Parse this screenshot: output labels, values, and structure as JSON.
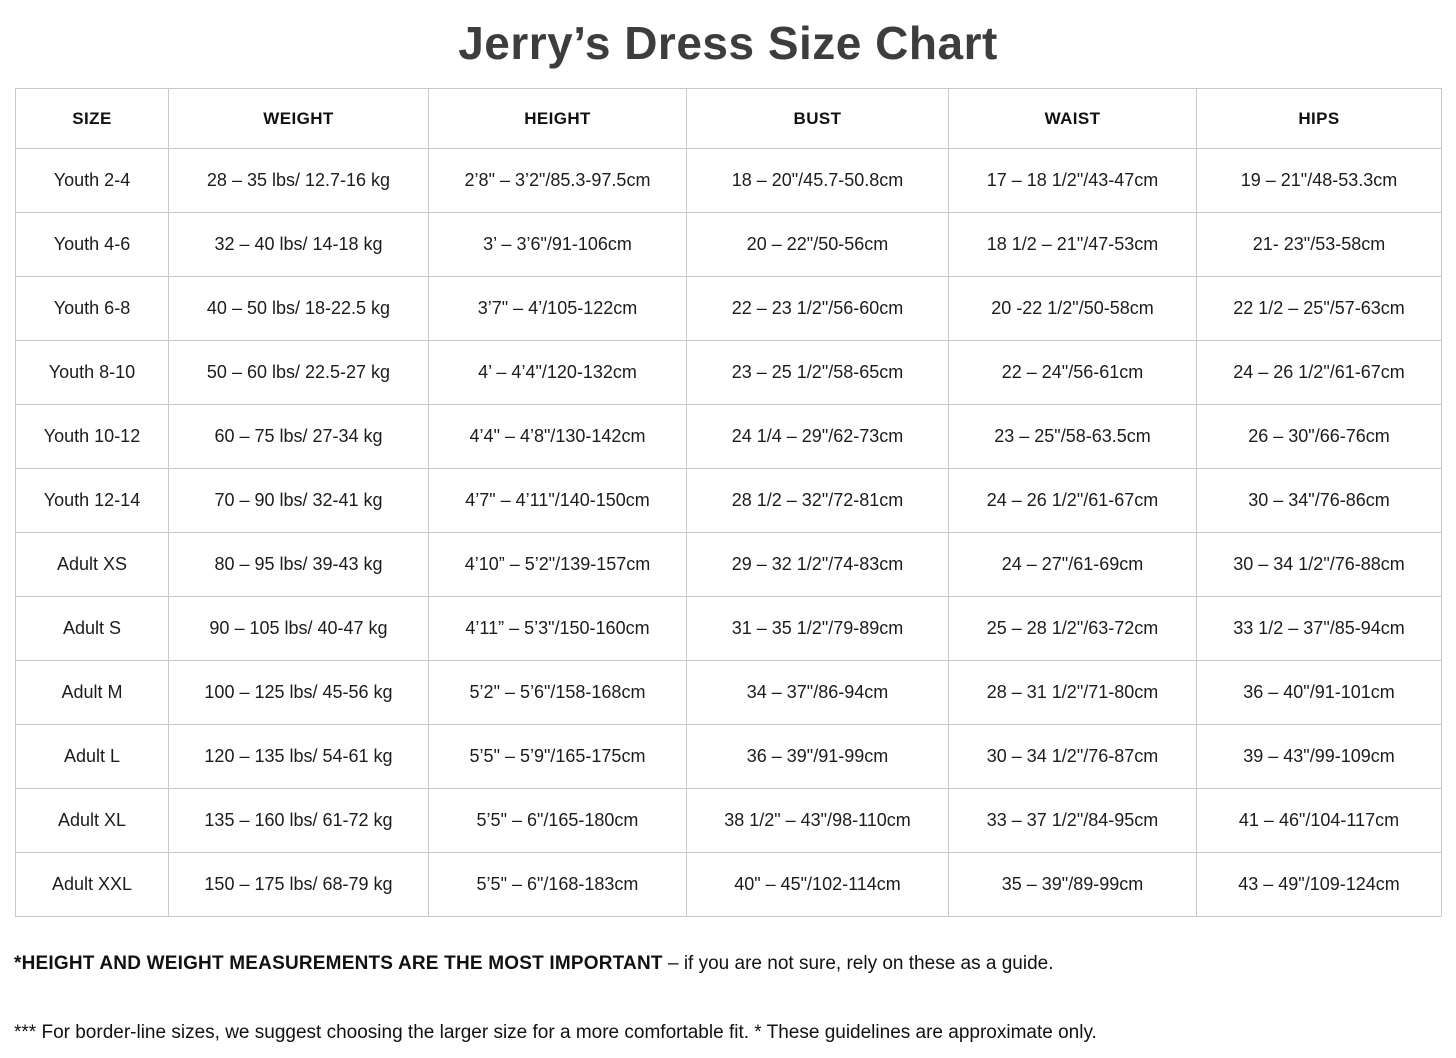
{
  "title": "Jerry’s Dress Size Chart",
  "chart_data": {
    "type": "table",
    "title": "Jerry’s Dress Size Chart",
    "columns": [
      "SIZE",
      "WEIGHT",
      "HEIGHT",
      "BUST",
      "WAIST",
      "HIPS"
    ],
    "fields": [
      "size",
      "weight",
      "height",
      "bust",
      "waist",
      "hips"
    ],
    "rows": [
      {
        "size": "Youth 2-4",
        "weight": "28 – 35 lbs/ 12.7-16 kg",
        "height": "2’8\" – 3’2\"/85.3-97.5cm",
        "bust": "18 – 20\"/45.7-50.8cm",
        "waist": "17 – 18 1/2\"/43-47cm",
        "hips": "19 – 21\"/48-53.3cm"
      },
      {
        "size": "Youth 4-6",
        "weight": "32 – 40 lbs/ 14-18 kg",
        "height": "3’ – 3’6\"/91-106cm",
        "bust": "20 – 22\"/50-56cm",
        "waist": "18 1/2 – 21\"/47-53cm",
        "hips": "21- 23\"/53-58cm"
      },
      {
        "size": "Youth 6-8",
        "weight": "40 – 50 lbs/ 18-22.5 kg",
        "height": "3’7\" – 4’/105-122cm",
        "bust": "22 – 23 1/2\"/56-60cm",
        "waist": "20 -22 1/2\"/50-58cm",
        "hips": "22 1/2 – 25\"/57-63cm"
      },
      {
        "size": "Youth 8-10",
        "weight": "50 – 60 lbs/ 22.5-27 kg",
        "height": "4’ – 4’4\"/120-132cm",
        "bust": "23 – 25 1/2\"/58-65cm",
        "waist": "22 – 24\"/56-61cm",
        "hips": "24 – 26 1/2\"/61-67cm"
      },
      {
        "size": "Youth 10-12",
        "weight": "60 – 75 lbs/ 27-34 kg",
        "height": "4’4\" – 4’8\"/130-142cm",
        "bust": "24 1/4 – 29\"/62-73cm",
        "waist": "23 – 25\"/58-63.5cm",
        "hips": "26 – 30\"/66-76cm"
      },
      {
        "size": "Youth 12-14",
        "weight": "70 – 90 lbs/ 32-41 kg",
        "height": "4’7\" – 4’11\"/140-150cm",
        "bust": "28 1/2 – 32\"/72-81cm",
        "waist": "24 – 26 1/2\"/61-67cm",
        "hips": "30 – 34\"/76-86cm"
      },
      {
        "size": "Adult XS",
        "weight": "80 – 95 lbs/ 39-43 kg",
        "height": "4’10” – 5’2\"/139-157cm",
        "bust": "29 – 32 1/2\"/74-83cm",
        "waist": "24 – 27\"/61-69cm",
        "hips": "30 – 34 1/2\"/76-88cm"
      },
      {
        "size": "Adult S",
        "weight": "90 – 105 lbs/ 40-47 kg",
        "height": "4’11” – 5’3\"/150-160cm",
        "bust": "31 – 35 1/2\"/79-89cm",
        "waist": "25 – 28 1/2\"/63-72cm",
        "hips": "33 1/2 – 37\"/85-94cm"
      },
      {
        "size": "Adult M",
        "weight": "100 – 125 lbs/ 45-56 kg",
        "height": "5’2\" – 5’6\"/158-168cm",
        "bust": "34 – 37\"/86-94cm",
        "waist": "28 – 31 1/2\"/71-80cm",
        "hips": "36 – 40\"/91-101cm"
      },
      {
        "size": "Adult L",
        "weight": "120 – 135 lbs/ 54-61 kg",
        "height": "5’5\" – 5’9\"/165-175cm",
        "bust": "36 – 39\"/91-99cm",
        "waist": "30 – 34 1/2\"/76-87cm",
        "hips": "39 – 43\"/99-109cm"
      },
      {
        "size": "Adult XL",
        "weight": "135 – 160 lbs/ 61-72 kg",
        "height": "5’5\" – 6\"/165-180cm",
        "bust": "38 1/2\" – 43\"/98-110cm",
        "waist": "33 – 37 1/2\"/84-95cm",
        "hips": "41 – 46\"/104-117cm"
      },
      {
        "size": "Adult XXL",
        "weight": "150 – 175 lbs/ 68-79 kg",
        "height": "5’5\" – 6\"/168-183cm",
        "bust": "40\" – 45\"/102-114cm",
        "waist": "35 – 39\"/89-99cm",
        "hips": "43 – 49\"/109-124cm"
      }
    ]
  },
  "notes": {
    "note1_bold": "*HEIGHT AND WEIGHT MEASUREMENTS ARE THE MOST IMPORTANT",
    "note1_rest": " – if you are not sure, rely on these as a guide.",
    "note2": "*** For border-line sizes, we suggest choosing the larger size for a more comfortable fit. * These guidelines are approximate only."
  },
  "colors": {
    "title_text": "#3d3d3d",
    "table_border": "#c9c9c9",
    "body_text": "#1c1c1c"
  }
}
